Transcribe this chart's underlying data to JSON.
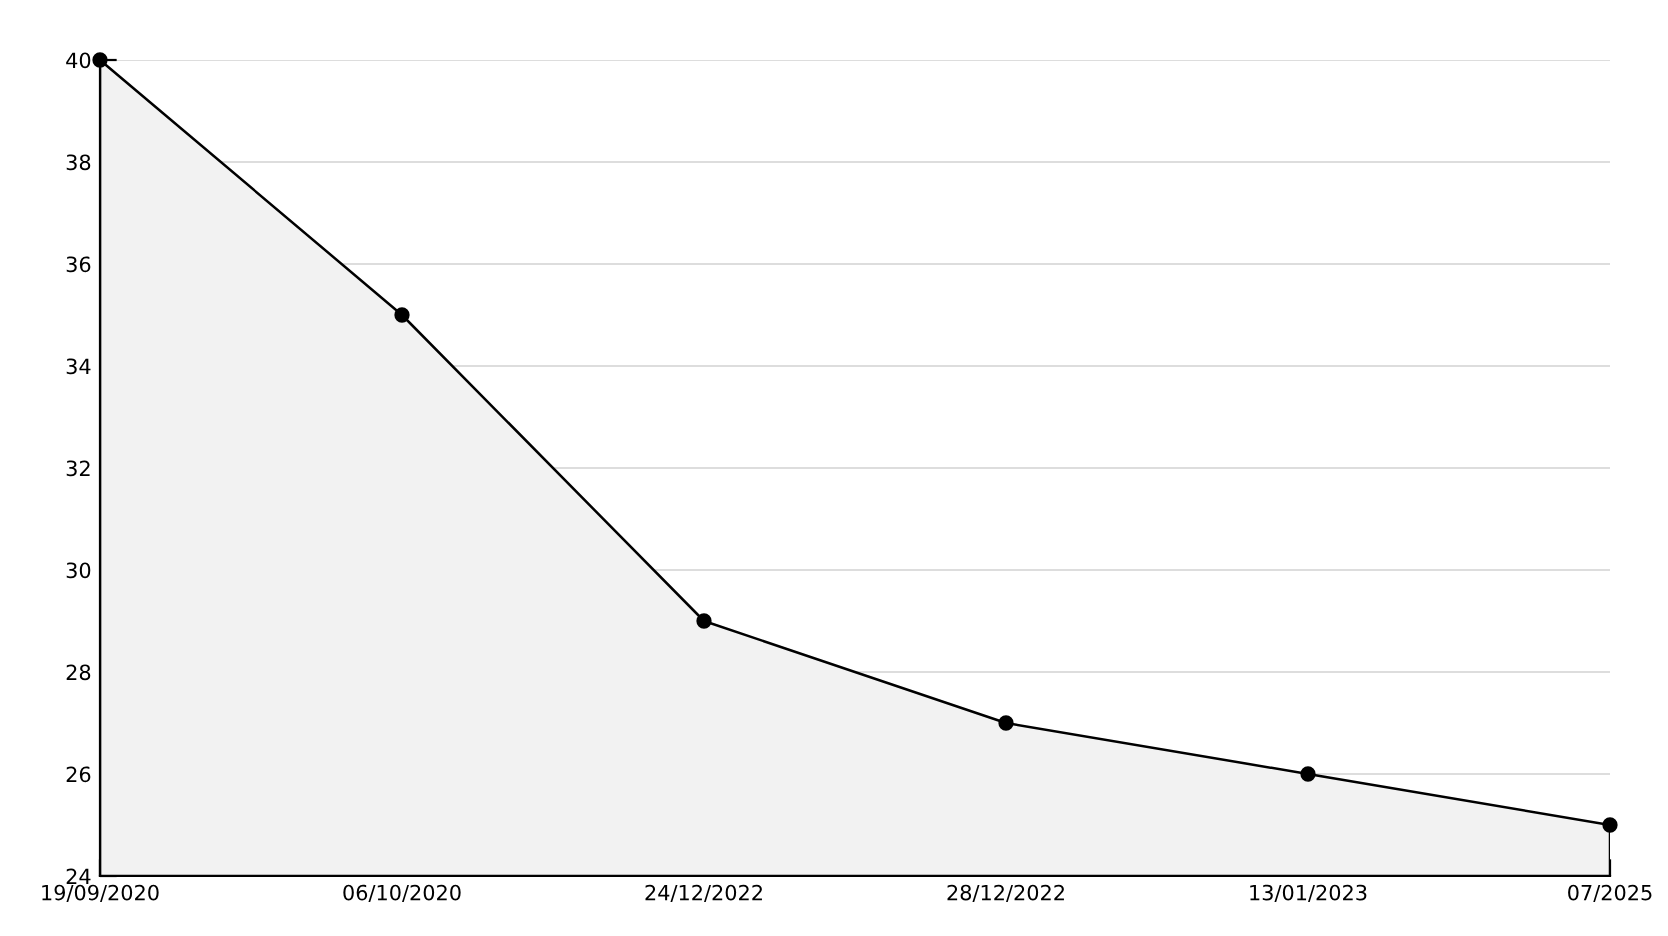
{
  "chart_data": {
    "type": "area",
    "categories": [
      "19/09/2020",
      "06/10/2020",
      "24/12/2022",
      "28/12/2022",
      "13/01/2023",
      "07/2025"
    ],
    "series": [
      {
        "color": "#f2f2f2",
        "values": [
          40,
          35,
          29,
          27,
          26,
          25
        ]
      }
    ],
    "ylim": [
      24,
      40
    ],
    "yticks": [
      24,
      26,
      28,
      30,
      32,
      34,
      36,
      38,
      40
    ],
    "grid": "y",
    "marker": "circle",
    "line_style": "solid",
    "legend": false
  }
}
